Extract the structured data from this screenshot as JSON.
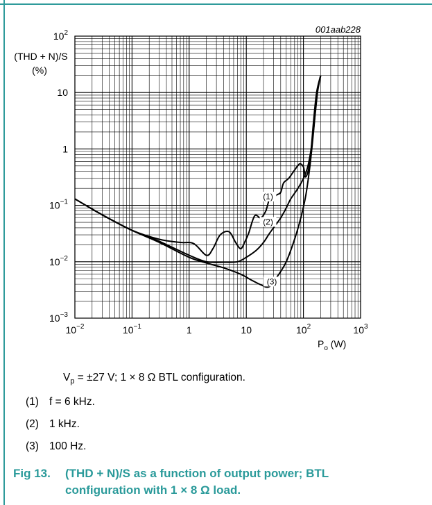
{
  "chart_data": {
    "type": "line",
    "figure_id": "001aab228",
    "ylabel_lines": [
      "(THD + N)/S",
      "(%)"
    ],
    "xlabel_main": "P",
    "xlabel_sub": "o",
    "xlabel_unit": " (W)",
    "x_scale": "log",
    "y_scale": "log",
    "xlim": [
      0.01,
      1000
    ],
    "ylim": [
      0.001,
      100
    ],
    "x_ticks": [
      {
        "value": 0.01,
        "base": "10",
        "exp": "−2"
      },
      {
        "value": 0.1,
        "base": "10",
        "exp": "−1"
      },
      {
        "value": 1,
        "base": "1",
        "exp": ""
      },
      {
        "value": 10,
        "base": "10",
        "exp": ""
      },
      {
        "value": 100,
        "base": "10",
        "exp": "2"
      },
      {
        "value": 1000,
        "base": "10",
        "exp": "3"
      }
    ],
    "y_ticks": [
      {
        "value": 0.001,
        "base": "10",
        "exp": "−3"
      },
      {
        "value": 0.01,
        "base": "10",
        "exp": "−2"
      },
      {
        "value": 0.1,
        "base": "10",
        "exp": "−1"
      },
      {
        "value": 1,
        "base": "1",
        "exp": ""
      },
      {
        "value": 10,
        "base": "10",
        "exp": ""
      },
      {
        "value": 100,
        "base": "10",
        "exp": "2"
      }
    ],
    "grid": true,
    "series": [
      {
        "name": "(1)",
        "label_at": [
          24,
          0.135
        ],
        "x": [
          0.01,
          0.03,
          0.1,
          0.3,
          0.7,
          1.2,
          2,
          2.6,
          3.5,
          5,
          6.5,
          8,
          9.5,
          11,
          14,
          18,
          22,
          26,
          30,
          35,
          40,
          45,
          55,
          70,
          85,
          100,
          110,
          130,
          150,
          170,
          200
        ],
        "y": [
          0.13,
          0.068,
          0.036,
          0.025,
          0.022,
          0.021,
          0.013,
          0.017,
          0.03,
          0.034,
          0.022,
          0.017,
          0.023,
          0.032,
          0.065,
          0.06,
          0.08,
          0.14,
          0.14,
          0.155,
          0.17,
          0.25,
          0.3,
          0.42,
          0.54,
          0.48,
          0.32,
          0.6,
          3,
          10,
          20
        ]
      },
      {
        "name": "(2)",
        "label_at": [
          24,
          0.048
        ],
        "x": [
          0.01,
          0.03,
          0.1,
          0.3,
          1,
          2,
          4,
          7,
          10,
          15,
          20,
          25,
          30,
          40,
          50,
          60,
          80,
          100,
          120,
          140,
          160,
          180,
          200
        ],
        "y": [
          0.13,
          0.068,
          0.036,
          0.023,
          0.013,
          0.01,
          0.0098,
          0.01,
          0.012,
          0.016,
          0.022,
          0.031,
          0.04,
          0.06,
          0.09,
          0.13,
          0.2,
          0.3,
          0.5,
          1.2,
          4,
          12,
          20
        ]
      },
      {
        "name": "(3)",
        "label_at": [
          28,
          0.0042
        ],
        "x": [
          0.01,
          0.03,
          0.1,
          0.3,
          1,
          2,
          4,
          8,
          12,
          18,
          25,
          35,
          50,
          70,
          90,
          110,
          130,
          150,
          170,
          200
        ],
        "y": [
          0.13,
          0.068,
          0.036,
          0.022,
          0.012,
          0.0095,
          0.0078,
          0.006,
          0.0048,
          0.0039,
          0.0036,
          0.0055,
          0.01,
          0.025,
          0.06,
          0.15,
          0.5,
          2,
          8,
          20
        ]
      }
    ]
  },
  "caption": {
    "vp_pre": "V",
    "vp_sub": "p",
    "vp_post": " = ±27 V; 1 × 8 Ω BTL configuration."
  },
  "notes": [
    {
      "num": "(1)",
      "text": "f = 6 kHz."
    },
    {
      "num": "(2)",
      "text": "1 kHz."
    },
    {
      "num": "(3)",
      "text": "100 Hz."
    }
  ],
  "fig_title": {
    "lead": "Fig 13.",
    "line1": "(THD + N)/S as a function of output power; BTL",
    "line2": "configuration with 1 × 8 Ω load."
  },
  "colors": {
    "accent": "#2a9a9a",
    "curve": "#000000",
    "grid": "#000000"
  }
}
